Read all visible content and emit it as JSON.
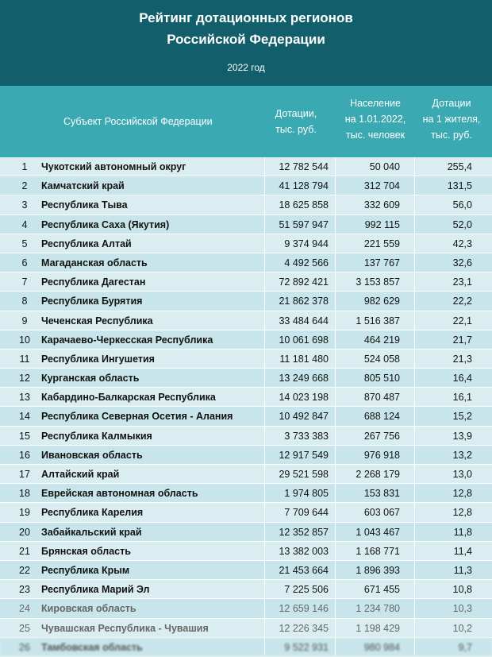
{
  "header": {
    "title_line1": "Рейтинг дотационных регионов",
    "title_line2": "Российской Федерации",
    "year": "2022 год"
  },
  "columns": {
    "subject": "Субъект Российской Федерации",
    "dotation_l1": "Дотации,",
    "dotation_l2": "тыс. руб.",
    "population_l1": "Население",
    "population_l2": "на 1.01.2022,",
    "population_l3": "тыс. человек",
    "per_capita_l1": "Дотации",
    "per_capita_l2": "на 1 жителя,",
    "per_capita_l3": "тыс. руб."
  },
  "rows": [
    {
      "n": "1",
      "name": "Чукотский автономный округ",
      "dotation": "12 782 544",
      "population": "50 040",
      "per_capita": "255,4"
    },
    {
      "n": "2",
      "name": "Камчатский край",
      "dotation": "41 128 794",
      "population": "312 704",
      "per_capita": "131,5"
    },
    {
      "n": "3",
      "name": "Республика Тыва",
      "dotation": "18 625 858",
      "population": "332 609",
      "per_capita": "56,0"
    },
    {
      "n": "4",
      "name": "Республика Саха (Якутия)",
      "dotation": "51 597 947",
      "population": "992 115",
      "per_capita": "52,0"
    },
    {
      "n": "5",
      "name": "Республика Алтай",
      "dotation": "9 374 944",
      "population": "221 559",
      "per_capita": "42,3"
    },
    {
      "n": "6",
      "name": "Магаданская область",
      "dotation": "4 492 566",
      "population": "137 767",
      "per_capita": "32,6"
    },
    {
      "n": "7",
      "name": "Республика Дагестан",
      "dotation": "72 892 421",
      "population": "3 153 857",
      "per_capita": "23,1"
    },
    {
      "n": "8",
      "name": "Республика Бурятия",
      "dotation": "21 862 378",
      "population": "982 629",
      "per_capita": "22,2"
    },
    {
      "n": "9",
      "name": "Чеченская Республика",
      "dotation": "33 484 644",
      "population": "1 516 387",
      "per_capita": "22,1"
    },
    {
      "n": "10",
      "name": "Карачаево-Черкесская Республика",
      "dotation": "10 061 698",
      "population": "464 219",
      "per_capita": "21,7"
    },
    {
      "n": "11",
      "name": "Республика Ингушетия",
      "dotation": "11 181 480",
      "population": "524 058",
      "per_capita": "21,3"
    },
    {
      "n": "12",
      "name": "Курганская область",
      "dotation": "13 249 668",
      "population": "805 510",
      "per_capita": "16,4"
    },
    {
      "n": "13",
      "name": "Кабардино-Балкарская Республика",
      "dotation": "14 023 198",
      "population": "870 487",
      "per_capita": "16,1"
    },
    {
      "n": "14",
      "name": "Республика Северная Осетия - Алания",
      "dotation": "10 492 847",
      "population": "688 124",
      "per_capita": "15,2"
    },
    {
      "n": "15",
      "name": "Республика Калмыкия",
      "dotation": "3 733 383",
      "population": "267 756",
      "per_capita": "13,9"
    },
    {
      "n": "16",
      "name": "Ивановская область",
      "dotation": "12 917 549",
      "population": "976 918",
      "per_capita": "13,2"
    },
    {
      "n": "17",
      "name": "Алтайский край",
      "dotation": "29 521 598",
      "population": "2 268 179",
      "per_capita": "13,0"
    },
    {
      "n": "18",
      "name": "Еврейская автономная область",
      "dotation": "1 974 805",
      "population": "153 831",
      "per_capita": "12,8"
    },
    {
      "n": "19",
      "name": "Республика Карелия",
      "dotation": "7 709 644",
      "population": "603 067",
      "per_capita": "12,8"
    },
    {
      "n": "20",
      "name": "Забайкальский край",
      "dotation": "12 352 857",
      "population": "1 043 467",
      "per_capita": "11,8"
    },
    {
      "n": "21",
      "name": "Брянская область",
      "dotation": "13 382 003",
      "population": "1 168 771",
      "per_capita": "11,4"
    },
    {
      "n": "22",
      "name": "Республика Крым",
      "dotation": "21 453 664",
      "population": "1 896 393",
      "per_capita": "11,3"
    },
    {
      "n": "23",
      "name": "Республика Марий Эл",
      "dotation": "7 225 506",
      "population": "671 455",
      "per_capita": "10,8"
    },
    {
      "n": "24",
      "name": "Кировская область",
      "dotation": "12 659 146",
      "population": "1 234 780",
      "per_capita": "10,3"
    },
    {
      "n": "25",
      "name": "Чувашская Республика - Чувашия",
      "dotation": "12 226 345",
      "population": "1 198 429",
      "per_capita": "10,2"
    },
    {
      "n": "26",
      "name": "Тамбовская область",
      "dotation": "9 522 931",
      "population": "980 984",
      "per_capita": "9,7"
    }
  ]
}
